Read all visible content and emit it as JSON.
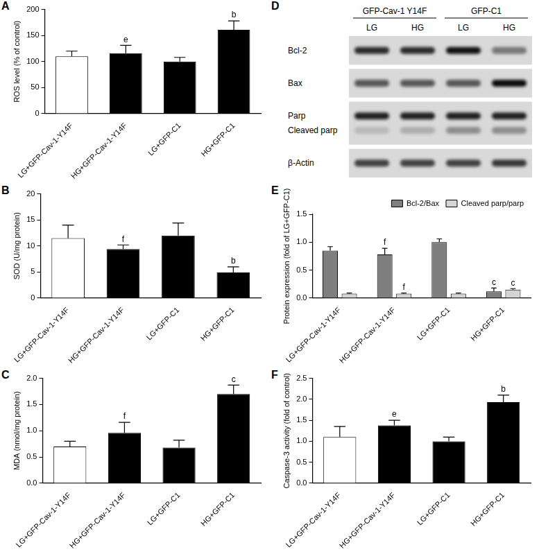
{
  "chart_data": [
    {
      "panel": "A",
      "type": "bar",
      "y_label": "ROS level (% of control)",
      "categories": [
        "LG+GFP-Cav-1-Y14F",
        "HG+GFP-Cav-1-Y14F",
        "LG+GFP-C1",
        "HG+GFP-C1"
      ],
      "values": [
        110,
        116,
        100,
        161
      ],
      "errors": [
        10,
        15,
        8,
        17
      ],
      "annotations": [
        null,
        "e",
        null,
        "b"
      ],
      "colors": [
        "#ffffff",
        "#000000",
        "#000000",
        "#000000"
      ],
      "ylim": [
        0,
        200
      ],
      "yticks": [
        0,
        50,
        100,
        150,
        200
      ],
      "grid": false
    },
    {
      "panel": "B",
      "type": "bar",
      "y_label": "SOD (U/mg protein)",
      "categories": [
        "LG+GFP-Cav-1-Y14F",
        "HG+GFP-Cav-1-Y14F",
        "LG+GFP-C1",
        "HG+GFP-C1"
      ],
      "values": [
        11.5,
        9.4,
        12,
        4.9
      ],
      "errors": [
        2.5,
        0.8,
        2.4,
        1.1
      ],
      "annotations": [
        null,
        "f",
        null,
        "b"
      ],
      "colors": [
        "#ffffff",
        "#000000",
        "#000000",
        "#000000"
      ],
      "ylim": [
        0,
        20
      ],
      "yticks": [
        0,
        5,
        10,
        15,
        20
      ],
      "grid": false
    },
    {
      "panel": "C",
      "type": "bar",
      "y_label": "MDA (nmol/mg protein)",
      "categories": [
        "LG+GFP-Cav-1-Y14F",
        "HG+GFP-Cav-1-Y14F",
        "LG+GFP-C1",
        "HG+GFP-C1"
      ],
      "values": [
        0.7,
        0.96,
        0.68,
        1.7
      ],
      "errors": [
        0.1,
        0.2,
        0.14,
        0.17
      ],
      "annotations": [
        null,
        "f",
        null,
        "c"
      ],
      "colors": [
        "#ffffff",
        "#000000",
        "#000000",
        "#000000"
      ],
      "ylim": [
        0,
        2
      ],
      "yticks": [
        {
          "value": 0,
          "label": "0.0"
        },
        0.5,
        {
          "value": 1,
          "label": "1.0"
        },
        1.5,
        {
          "value": 2,
          "label": "2.0"
        }
      ],
      "grid": false
    },
    {
      "panel": "E",
      "type": "bar",
      "y_label": "Protein expression (fold of LG+GFP-C1)",
      "categories": [
        "LG+GFP-Cav-1-Y14F",
        "HG+GFP-Cav-1-Y14F",
        "LG+GFP-C1",
        "HG+GFP-C1"
      ],
      "series": [
        {
          "name": "Bcl-2/Bax",
          "color": "#7f7f7f",
          "values": [
            0.85,
            0.78,
            1.0,
            0.12
          ],
          "errors": [
            0.07,
            0.11,
            0.06,
            0.06
          ],
          "annotations": [
            null,
            "f",
            null,
            "c"
          ]
        },
        {
          "name": "Cleaved parp/parp",
          "color": "#d4d4d4",
          "values": [
            0.08,
            0.08,
            0.08,
            0.15
          ],
          "errors": [
            0.01,
            0.01,
            0.01,
            0.02
          ],
          "annotations": [
            null,
            "f",
            null,
            "c"
          ]
        }
      ],
      "legend": "upper right",
      "ylim": [
        0,
        1.5
      ],
      "yticks": [
        {
          "value": 0,
          "label": "0.0"
        },
        0.5,
        {
          "value": 1,
          "label": "1.0"
        },
        1.5
      ],
      "grid": false
    },
    {
      "panel": "F",
      "type": "bar",
      "y_label": "Caspase-3 activity (fold of control)",
      "categories": [
        "LG+GFP-Cav-1-Y14F",
        "HG+GFP-Cav-1-Y14F",
        "LG+GFP-C1",
        "HG+GFP-C1"
      ],
      "values": [
        1.1,
        1.38,
        1.0,
        1.93
      ],
      "errors": [
        0.25,
        0.12,
        0.1,
        0.17
      ],
      "annotations": [
        null,
        "e",
        null,
        "b"
      ],
      "colors": [
        "#ffffff",
        "#000000",
        "#000000",
        "#000000"
      ],
      "ylim": [
        0,
        2.5
      ],
      "yticks": [
        {
          "value": 0,
          "label": "0.0"
        },
        0.5,
        {
          "value": 1,
          "label": "1.0"
        },
        1.5,
        {
          "value": 2,
          "label": "2.0"
        },
        2.5
      ],
      "grid": false
    }
  ],
  "blot": {
    "panel": "D",
    "groups": [
      {
        "label": "GFP-Cav-1 Y14F",
        "lanes": [
          "LG",
          "HG"
        ]
      },
      {
        "label": "GFP-C1",
        "lanes": [
          "LG",
          "HG"
        ]
      }
    ],
    "strips": [
      [
        {
          "label": "Bcl-2",
          "intensity": [
            0.8,
            0.8,
            0.92,
            0.45
          ]
        }
      ],
      [
        {
          "label": "Bax",
          "intensity": [
            0.6,
            0.6,
            0.6,
            0.95
          ]
        }
      ],
      [
        {
          "label": "Parp",
          "intensity": [
            0.85,
            0.85,
            0.85,
            0.85
          ]
        },
        {
          "label": "Cleaved parp",
          "intensity": [
            0.15,
            0.2,
            0.35,
            0.35
          ]
        }
      ],
      [
        {
          "label": "β-Actin",
          "intensity": [
            0.7,
            0.7,
            0.7,
            0.75
          ]
        }
      ]
    ]
  }
}
